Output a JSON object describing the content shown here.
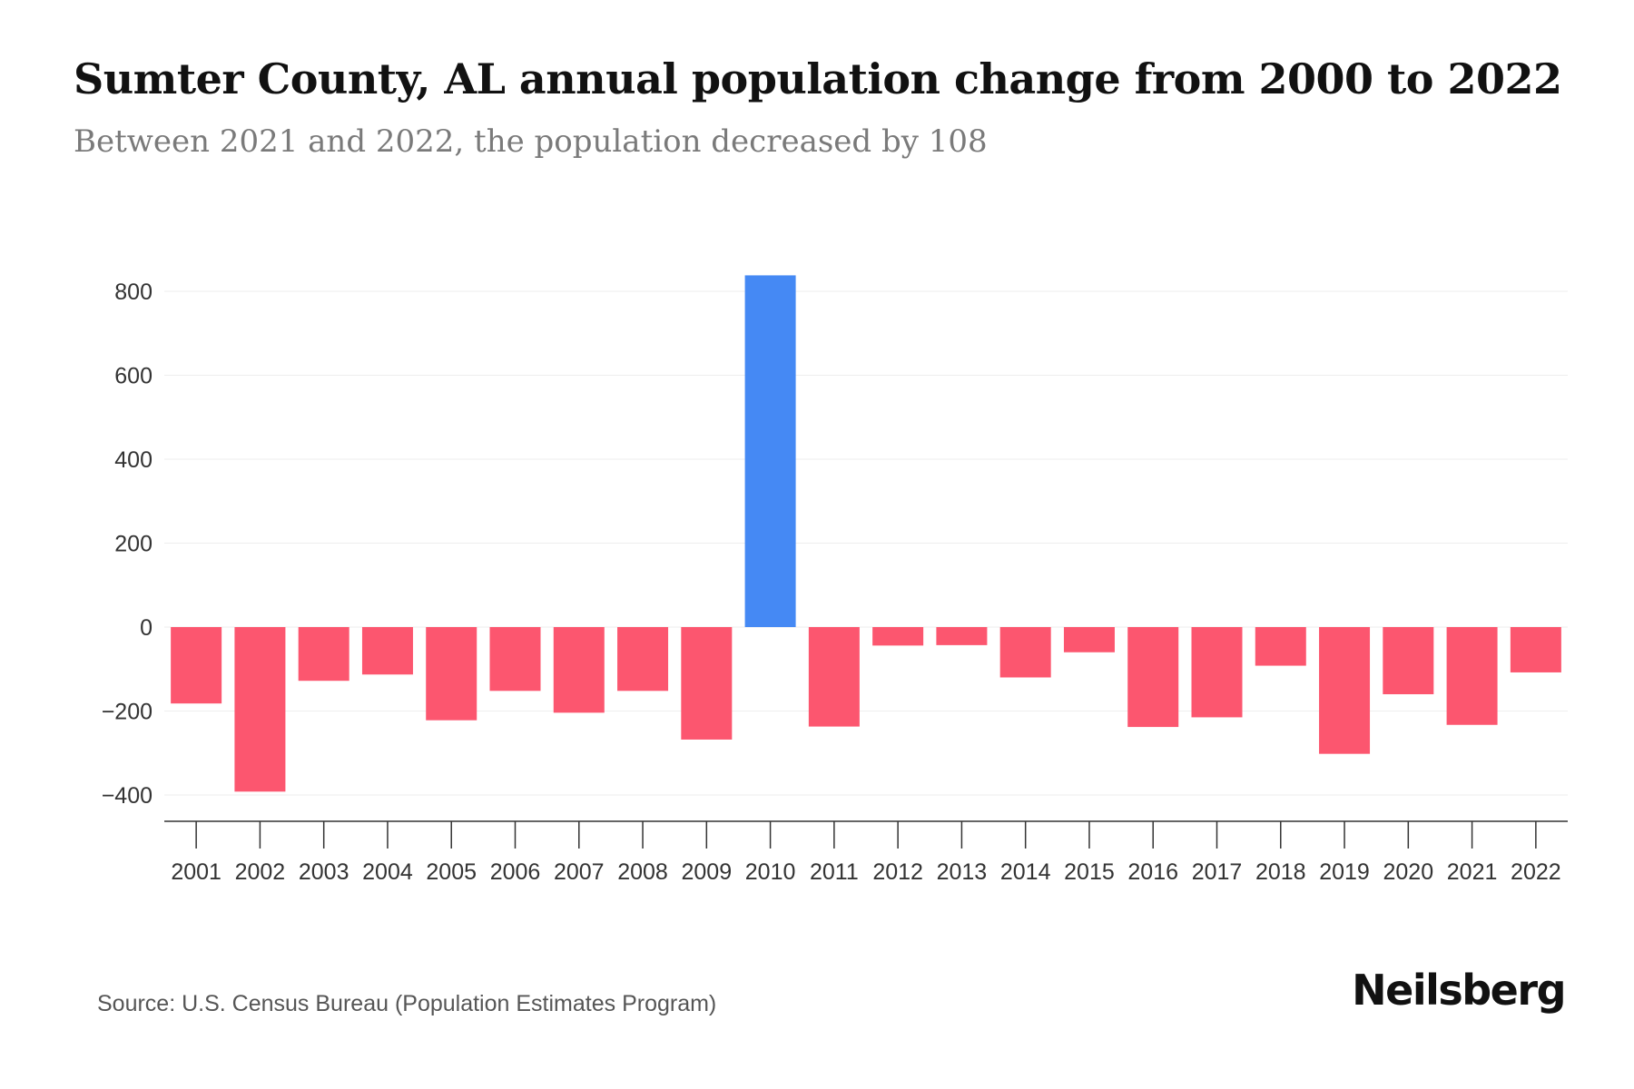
{
  "header": {
    "title": "Sumter County, AL annual population change from 2000 to 2022",
    "subtitle": "Between 2021 and 2022, the population decreased by 108"
  },
  "footer": {
    "source": "Source: U.S. Census Bureau (Population Estimates Program)",
    "brand": "Neilsberg"
  },
  "colors": {
    "positive": "#4589f4",
    "negative": "#fc566f",
    "grid": "#eeeeee",
    "axis": "#333333",
    "tick_text": "#333333"
  },
  "chart_data": {
    "type": "bar",
    "title": "Sumter County, AL annual population change from 2000 to 2022",
    "xlabel": "",
    "ylabel": "",
    "categories": [
      "2001",
      "2002",
      "2003",
      "2004",
      "2005",
      "2006",
      "2007",
      "2008",
      "2009",
      "2010",
      "2011",
      "2012",
      "2013",
      "2014",
      "2015",
      "2016",
      "2017",
      "2018",
      "2019",
      "2020",
      "2021",
      "2022"
    ],
    "values": [
      -182,
      -392,
      -128,
      -113,
      -222,
      -152,
      -204,
      -152,
      -268,
      838,
      -237,
      -44,
      -43,
      -120,
      -60,
      -238,
      -215,
      -92,
      -302,
      -160,
      -233,
      -108
    ],
    "y_ticks": [
      800,
      600,
      400,
      200,
      0,
      -200,
      -400
    ],
    "y_tick_labels": [
      "800",
      "600",
      "400",
      "200",
      "0",
      "−200",
      "−400"
    ],
    "ylim": [
      -465,
      840
    ],
    "grid": true
  }
}
